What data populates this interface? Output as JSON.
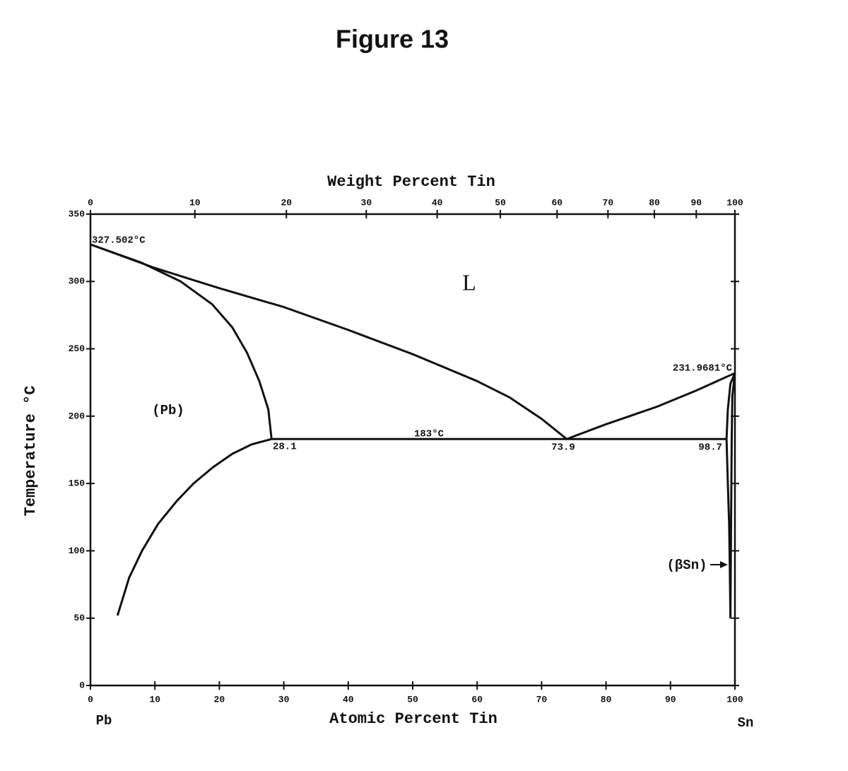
{
  "chart_data": {
    "type": "line",
    "title": "Figure 13",
    "x_label": "Atomic Percent Tin",
    "x2_label": "Weight Percent Tin",
    "y_label": "Temperature °C",
    "xlim": [
      0,
      100
    ],
    "xticks": [
      0,
      10,
      20,
      30,
      40,
      50,
      60,
      70,
      80,
      90,
      100
    ],
    "x2ticks": [
      {
        "value": 0,
        "label": "0"
      },
      {
        "value": 16.2,
        "label": "10"
      },
      {
        "value": 30.4,
        "label": "20"
      },
      {
        "value": 42.8,
        "label": "30"
      },
      {
        "value": 53.8,
        "label": "40"
      },
      {
        "value": 63.6,
        "label": "50"
      },
      {
        "value": 72.4,
        "label": "60"
      },
      {
        "value": 80.3,
        "label": "70"
      },
      {
        "value": 87.5,
        "label": "80"
      },
      {
        "value": 94.0,
        "label": "90"
      },
      {
        "value": 100,
        "label": "100"
      }
    ],
    "ylim": [
      0,
      350
    ],
    "yticks": [
      0,
      50,
      100,
      150,
      200,
      250,
      300,
      350
    ],
    "color": "#111111",
    "series": [
      {
        "x": [
          0,
          10,
          20,
          30,
          40,
          50,
          60,
          65,
          70,
          73.9
        ],
        "values": [
          327.502,
          310,
          295,
          281,
          264,
          246,
          226,
          214,
          198,
          183
        ]
      },
      {
        "x": [
          0,
          7.9,
          14,
          18.9,
          22,
          24.3,
          26.2,
          27.6,
          28.1
        ],
        "values": [
          327.502,
          314,
          300,
          283,
          266,
          247,
          226,
          205,
          183
        ]
      },
      {
        "x": [
          28.1,
          25,
          22,
          19,
          16,
          13.4,
          10.5,
          8,
          6,
          4.2
        ],
        "values": [
          183,
          179,
          172,
          162,
          150,
          137,
          120,
          100,
          80,
          52
        ]
      },
      {
        "x": [
          73.9,
          80,
          87.9,
          94,
          100
        ],
        "values": [
          183,
          194,
          207,
          219,
          231.9681
        ]
      },
      {
        "x": [
          28.1,
          73.9,
          98.7
        ],
        "values": [
          183,
          183,
          183
        ]
      },
      {
        "x": [
          100,
          99.3,
          98.9,
          98.7
        ],
        "values": [
          231.9681,
          224,
          205,
          183
        ]
      },
      {
        "x": [
          98.7,
          98.9,
          99.1,
          99.2,
          99.3
        ],
        "values": [
          183,
          150,
          120,
          90,
          50
        ]
      },
      {
        "x": [
          100,
          99.6,
          99.5,
          99.4,
          99.3
        ],
        "values": [
          231.9681,
          215,
          183,
          120,
          50
        ]
      }
    ],
    "annotations": [
      "327.502°C",
      "231.9681°C",
      "183°C",
      "28.1",
      "73.9",
      "98.7",
      "L",
      "(Pb)",
      "(βSn)",
      "Pb",
      "Sn"
    ]
  }
}
